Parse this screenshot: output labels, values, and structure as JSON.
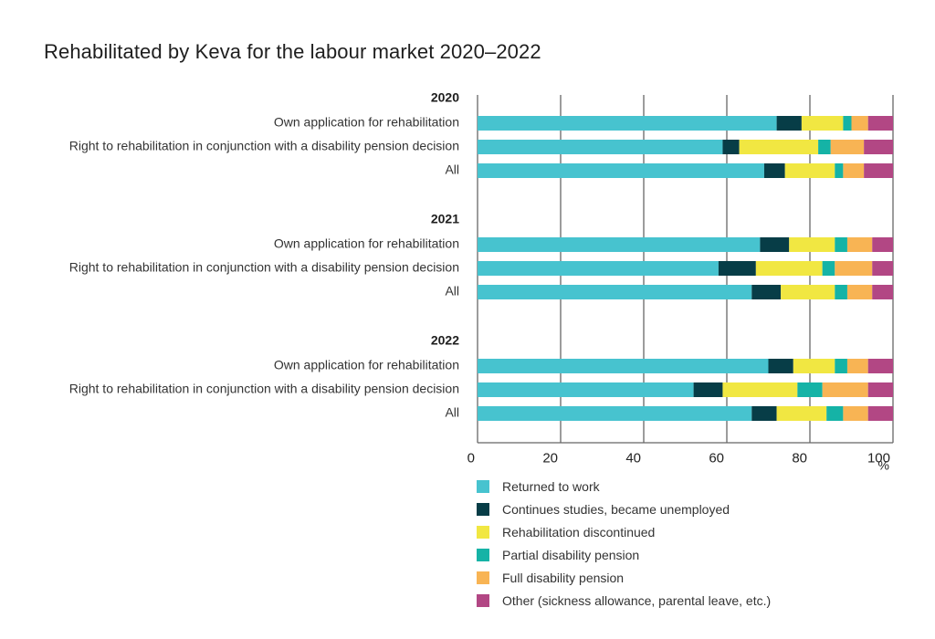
{
  "chart_data": {
    "type": "bar",
    "orientation": "horizontal",
    "stacked": true,
    "title": "Rehabilitated by Keva for the labour market 2020–2022",
    "xlabel": "%",
    "xlim": [
      0,
      100
    ],
    "xticks": [
      0,
      20,
      40,
      60,
      80,
      100
    ],
    "grid": true,
    "legend_position": "bottom",
    "groups": [
      {
        "label": "2020",
        "rows": [
          {
            "label": "Own application for rehabilitation",
            "values": [
              72,
              6,
              10,
              2,
              4,
              6
            ]
          },
          {
            "label": "Right to rehabilitation in conjunction with a disability pension decision",
            "values": [
              59,
              4,
              19,
              3,
              8,
              7
            ]
          },
          {
            "label": "All",
            "values": [
              69,
              5,
              12,
              2,
              5,
              7
            ]
          }
        ]
      },
      {
        "label": "2021",
        "rows": [
          {
            "label": "Own application for rehabilitation",
            "values": [
              68,
              7,
              11,
              3,
              6,
              5
            ]
          },
          {
            "label": "Right to rehabilitation in conjunction with a disability pension decision",
            "values": [
              58,
              9,
              16,
              3,
              9,
              5
            ]
          },
          {
            "label": "All",
            "values": [
              66,
              7,
              13,
              3,
              6,
              5
            ]
          }
        ]
      },
      {
        "label": "2022",
        "rows": [
          {
            "label": "Own application for rehabilitation",
            "values": [
              70,
              6,
              10,
              3,
              5,
              6
            ]
          },
          {
            "label": "Right to rehabilitation in conjunction with a disability pension decision",
            "values": [
              52,
              7,
              18,
              6,
              11,
              6
            ]
          },
          {
            "label": "All",
            "values": [
              66,
              6,
              12,
              4,
              6,
              6
            ]
          }
        ]
      }
    ],
    "series": [
      {
        "name": "Returned to work",
        "color": "#47c3cf"
      },
      {
        "name": "Continues studies, became unemployed",
        "color": "#073d47"
      },
      {
        "name": "Rehabilitation discontinued",
        "color": "#f1e742"
      },
      {
        "name": "Partial disability pension",
        "color": "#15b3a6"
      },
      {
        "name": "Full disability pension",
        "color": "#f8b454"
      },
      {
        "name": "Other (sickness allowance, parental leave, etc.)",
        "color": "#b24784"
      }
    ]
  }
}
